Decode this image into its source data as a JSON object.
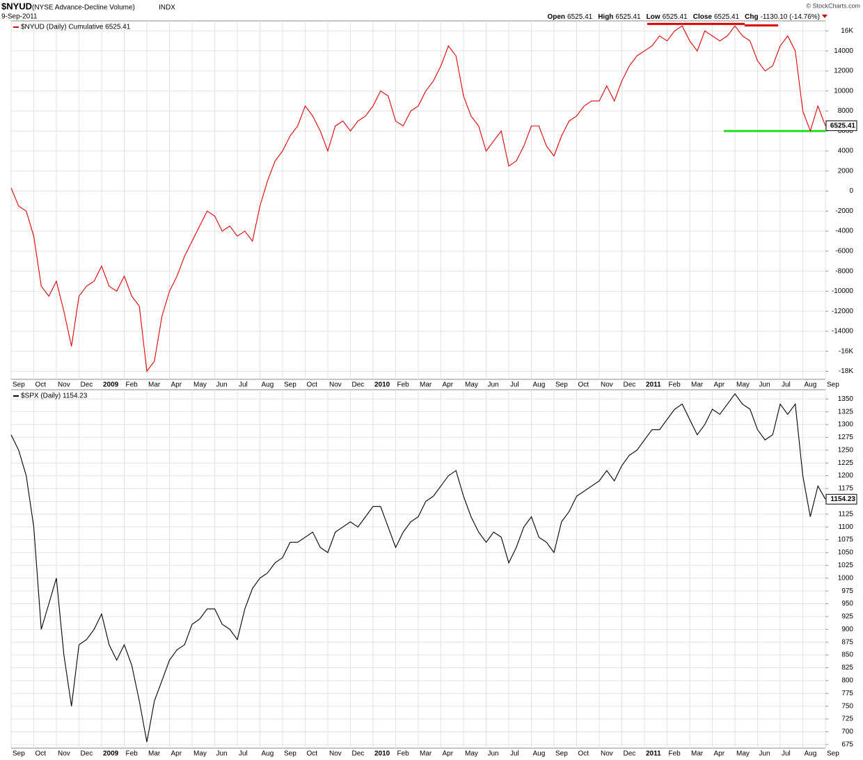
{
  "header": {
    "symbol": "$NYUD",
    "name": "(NYSE Advance-Decline Volume)",
    "exchange": "INDX",
    "date": "9-Sep-2011",
    "copyright": "© StockCharts.com",
    "quote": [
      {
        "label": "Open",
        "value": "6525.41"
      },
      {
        "label": "High",
        "value": "6525.41"
      },
      {
        "label": "Low",
        "value": "6525.41"
      },
      {
        "label": "Close",
        "value": "6525.41"
      },
      {
        "label": "Chg",
        "value": "-1130.10 (-14.76%)"
      }
    ]
  },
  "chart_data": [
    {
      "type": "line",
      "grid": true,
      "categories": [
        "Sep",
        null,
        null,
        "Oct",
        null,
        null,
        "Nov",
        null,
        null,
        "Dec",
        null,
        null,
        "2009",
        null,
        null,
        "Feb",
        null,
        null,
        "Mar",
        null,
        null,
        "Apr",
        null,
        null,
        "May",
        null,
        null,
        "Jun",
        null,
        null,
        "Jul",
        null,
        null,
        "Aug",
        null,
        null,
        "Sep",
        null,
        null,
        "Oct",
        null,
        null,
        "Nov",
        null,
        null,
        "Dec",
        null,
        null,
        "2010",
        null,
        null,
        "Feb",
        null,
        null,
        "Mar",
        null,
        null,
        "Apr",
        null,
        null,
        "May",
        null,
        null,
        "Jun",
        null,
        null,
        "Jul",
        null,
        null,
        "Aug",
        null,
        null,
        "Sep",
        null,
        null,
        "Oct",
        null,
        null,
        "Nov",
        null,
        null,
        "Dec",
        null,
        null,
        "2011",
        null,
        null,
        "Feb",
        null,
        null,
        "Mar",
        null,
        null,
        "Apr",
        null,
        null,
        "May",
        null,
        null,
        "Jun",
        null,
        null,
        "Jul",
        null,
        null,
        "Aug",
        null,
        null,
        "Sep"
      ],
      "series": [
        {
          "name": "$NYUD (Daily) Cumulative 6525.41",
          "color": "#e00000",
          "values": [
            300,
            -1500,
            -2000,
            -4500,
            -9500,
            -10500,
            -9000,
            -12000,
            -15500,
            -10500,
            -9500,
            -9000,
            -7500,
            -9500,
            -10000,
            -8500,
            -10500,
            -11500,
            -18000,
            -17000,
            -12500,
            -10000,
            -8500,
            -6500,
            -5000,
            -3500,
            -2000,
            -2500,
            -4000,
            -3500,
            -4500,
            -4000,
            -5000,
            -1500,
            1000,
            3000,
            4000,
            5500,
            6500,
            8500,
            7500,
            6000,
            4000,
            6500,
            7000,
            6000,
            7000,
            7500,
            8500,
            10000,
            9500,
            7000,
            6500,
            8000,
            8500,
            10000,
            11000,
            12500,
            14500,
            13500,
            9500,
            7500,
            6500,
            4000,
            5000,
            6000,
            2500,
            3000,
            4500,
            6500,
            6500,
            4500,
            3500,
            5500,
            7000,
            7500,
            8500,
            9000,
            9000,
            10500,
            9000,
            11000,
            12500,
            13500,
            14000,
            14500,
            15500,
            15000,
            16000,
            16500,
            15000,
            14000,
            16000,
            15500,
            15000,
            15500,
            16500,
            15500,
            15000,
            13000,
            12000,
            12500,
            14500,
            15500,
            14000,
            8000,
            6000,
            8500,
            6525.41
          ]
        }
      ],
      "ylim": [
        -18800,
        17000
      ],
      "yticks": [
        {
          "value": -18000,
          "label": "-18K"
        },
        {
          "value": -16000,
          "label": "-16K"
        },
        -14000,
        -12000,
        -10000,
        -8000,
        -6000,
        -4000,
        -2000,
        0,
        2000,
        4000,
        6000,
        8000,
        10000,
        12000,
        14000,
        {
          "value": 16000,
          "label": "16K"
        }
      ],
      "reference_lines": [
        {
          "value": 16700,
          "color": "#e00000"
        },
        {
          "value": 16550,
          "color": "#e00000"
        },
        {
          "value": 6000,
          "color": "#22dd22"
        }
      ]
    },
    {
      "type": "line",
      "grid": true,
      "categories": [
        "Sep",
        null,
        null,
        "Oct",
        null,
        null,
        "Nov",
        null,
        null,
        "Dec",
        null,
        null,
        "2009",
        null,
        null,
        "Feb",
        null,
        null,
        "Mar",
        null,
        null,
        "Apr",
        null,
        null,
        "May",
        null,
        null,
        "Jun",
        null,
        null,
        "Jul",
        null,
        null,
        "Aug",
        null,
        null,
        "Sep",
        null,
        null,
        "Oct",
        null,
        null,
        "Nov",
        null,
        null,
        "Dec",
        null,
        null,
        "2010",
        null,
        null,
        "Feb",
        null,
        null,
        "Mar",
        null,
        null,
        "Apr",
        null,
        null,
        "May",
        null,
        null,
        "Jun",
        null,
        null,
        "Jul",
        null,
        null,
        "Aug",
        null,
        null,
        "Sep",
        null,
        null,
        "Oct",
        null,
        null,
        "Nov",
        null,
        null,
        "Dec",
        null,
        null,
        "2011",
        null,
        null,
        "Feb",
        null,
        null,
        "Mar",
        null,
        null,
        "Apr",
        null,
        null,
        "May",
        null,
        null,
        "Jun",
        null,
        null,
        "Jul",
        null,
        null,
        "Aug",
        null,
        null,
        "Sep"
      ],
      "series": [
        {
          "name": "$SPX (Daily) 1154.23",
          "color": "#000000",
          "values": [
            1280,
            1250,
            1200,
            1100,
            900,
            950,
            1000,
            850,
            750,
            870,
            880,
            900,
            930,
            870,
            840,
            870,
            830,
            760,
            680,
            760,
            800,
            840,
            860,
            870,
            910,
            920,
            940,
            940,
            910,
            900,
            880,
            940,
            980,
            1000,
            1010,
            1030,
            1040,
            1070,
            1070,
            1080,
            1090,
            1060,
            1050,
            1090,
            1100,
            1110,
            1100,
            1120,
            1140,
            1140,
            1100,
            1060,
            1090,
            1110,
            1120,
            1150,
            1160,
            1180,
            1200,
            1210,
            1160,
            1120,
            1090,
            1070,
            1090,
            1080,
            1030,
            1060,
            1100,
            1120,
            1080,
            1070,
            1050,
            1110,
            1130,
            1160,
            1170,
            1180,
            1190,
            1210,
            1190,
            1220,
            1240,
            1250,
            1270,
            1290,
            1290,
            1310,
            1330,
            1340,
            1310,
            1280,
            1300,
            1330,
            1320,
            1340,
            1360,
            1340,
            1330,
            1290,
            1270,
            1280,
            1340,
            1320,
            1340,
            1200,
            1120,
            1180,
            1154.23
          ]
        }
      ],
      "ylim": [
        668,
        1368
      ],
      "yticks": [
        675,
        700,
        725,
        750,
        775,
        800,
        825,
        850,
        875,
        900,
        925,
        950,
        975,
        1000,
        1025,
        1050,
        1075,
        1100,
        1125,
        1150,
        1175,
        1200,
        1225,
        1250,
        1275,
        1300,
        1325,
        1350
      ]
    }
  ]
}
